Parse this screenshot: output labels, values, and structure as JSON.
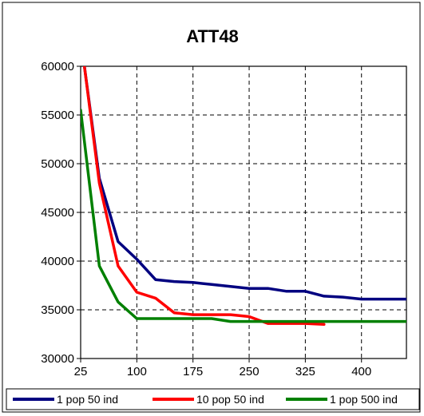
{
  "chart_data": {
    "type": "line",
    "title": "ATT48",
    "xlabel": "",
    "ylabel": "",
    "xlim": [
      25,
      460
    ],
    "ylim": [
      30000,
      60000
    ],
    "x_ticks": [
      25,
      100,
      175,
      250,
      325,
      400
    ],
    "x_tick_labels": [
      "25",
      "100",
      "175",
      "250",
      "325",
      "400"
    ],
    "y_ticks": [
      30000,
      35000,
      40000,
      45000,
      50000,
      55000,
      60000
    ],
    "y_tick_labels": [
      "30000",
      "35000",
      "40000",
      "45000",
      "50000",
      "55000",
      "60000"
    ],
    "grid": true,
    "legend_position": "bottom",
    "series": [
      {
        "name": "1 pop 50 ind",
        "color": "#000080",
        "x": [
          30,
          50,
          75,
          100,
          125,
          150,
          175,
          200,
          225,
          250,
          275,
          300,
          325,
          350,
          375,
          400,
          425,
          460
        ],
        "y": [
          60000,
          48500,
          42000,
          40200,
          38100,
          37900,
          37800,
          37600,
          37400,
          37200,
          37200,
          36900,
          36900,
          36400,
          36300,
          36100,
          36100,
          36100
        ]
      },
      {
        "name": "10 pop 50 ind",
        "color": "#ff0000",
        "x": [
          30,
          50,
          75,
          100,
          125,
          150,
          175,
          200,
          225,
          250,
          275,
          300,
          325,
          350
        ],
        "y": [
          60000,
          48000,
          39500,
          36800,
          36200,
          34700,
          34500,
          34500,
          34500,
          34300,
          33600,
          33600,
          33600,
          33500
        ]
      },
      {
        "name": "1 pop 500 ind",
        "color": "#008000",
        "x": [
          25,
          50,
          75,
          100,
          125,
          150,
          175,
          200,
          225,
          250,
          275,
          300,
          325,
          350,
          375,
          400,
          425,
          460
        ],
        "y": [
          55500,
          39500,
          35800,
          34100,
          34100,
          34100,
          34100,
          34100,
          33800,
          33800,
          33800,
          33800,
          33800,
          33800,
          33800,
          33800,
          33800,
          33800
        ]
      }
    ]
  }
}
